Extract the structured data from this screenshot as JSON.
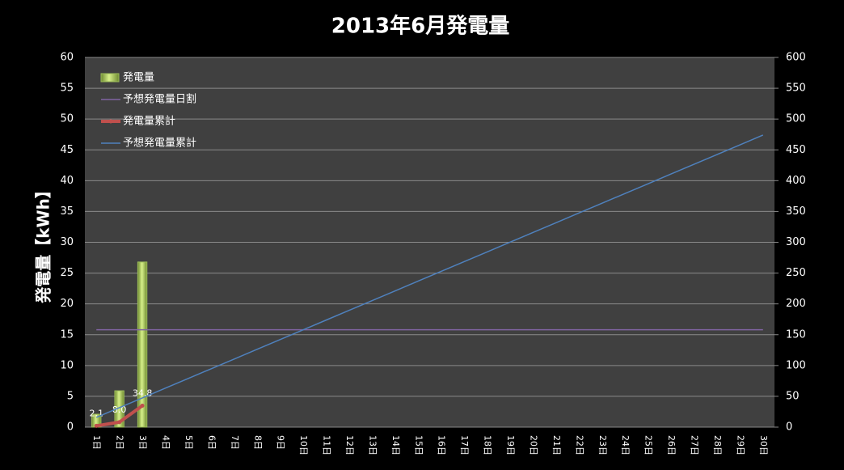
{
  "chart_data": {
    "type": "combo",
    "title": "2013年6月発電量",
    "y_label": "発電量【kWh】",
    "categories": [
      "1日",
      "2日",
      "3日",
      "4日",
      "5日",
      "6日",
      "7日",
      "8日",
      "9日",
      "10日",
      "11日",
      "12日",
      "13日",
      "14日",
      "15日",
      "16日",
      "17日",
      "18日",
      "19日",
      "20日",
      "21日",
      "22日",
      "23日",
      "24日",
      "25日",
      "26日",
      "27日",
      "28日",
      "29日",
      "30日"
    ],
    "ylim": [
      0,
      60
    ],
    "yticks": [
      0,
      5,
      10,
      15,
      20,
      25,
      30,
      35,
      40,
      45,
      50,
      55,
      60
    ],
    "y2lim": [
      0,
      600
    ],
    "y2ticks": [
      0,
      50,
      100,
      150,
      200,
      250,
      300,
      350,
      400,
      450,
      500,
      550,
      600
    ],
    "grid": true,
    "legend": "top-left",
    "series": [
      {
        "name": "発電量",
        "kind": "bar",
        "color": "#9bbb59",
        "values": [
          2.1,
          5.9,
          26.8,
          null,
          null,
          null,
          null,
          null,
          null,
          null,
          null,
          null,
          null,
          null,
          null,
          null,
          null,
          null,
          null,
          null,
          null,
          null,
          null,
          null,
          null,
          null,
          null,
          null,
          null,
          null
        ]
      },
      {
        "name": "予想発電量日割",
        "kind": "line",
        "color": "#8064a2",
        "values": [
          15.8,
          15.8,
          15.8,
          15.8,
          15.8,
          15.8,
          15.8,
          15.8,
          15.8,
          15.8,
          15.8,
          15.8,
          15.8,
          15.8,
          15.8,
          15.8,
          15.8,
          15.8,
          15.8,
          15.8,
          15.8,
          15.8,
          15.8,
          15.8,
          15.8,
          15.8,
          15.8,
          15.8,
          15.8,
          15.8
        ]
      },
      {
        "name": "発電量累計",
        "kind": "line",
        "axis": "y2",
        "markers": true,
        "color": "#c0504d",
        "values": [
          2.1,
          8.0,
          34.8,
          null,
          null,
          null,
          null,
          null,
          null,
          null,
          null,
          null,
          null,
          null,
          null,
          null,
          null,
          null,
          null,
          null,
          null,
          null,
          null,
          null,
          null,
          null,
          null,
          null,
          null,
          null
        ],
        "value_labels": [
          "2.1",
          "8.0",
          "34.8",
          null,
          null,
          null,
          null,
          null,
          null,
          null,
          null,
          null,
          null,
          null,
          null,
          null,
          null,
          null,
          null,
          null,
          null,
          null,
          null,
          null,
          null,
          null,
          null,
          null,
          null,
          null
        ]
      },
      {
        "name": "予想発電量累計",
        "kind": "line",
        "axis": "y2",
        "color": "#4f81bd",
        "values": [
          15.8,
          31.6,
          47.4,
          63.2,
          79.0,
          94.8,
          110.6,
          126.4,
          142.2,
          158.0,
          173.8,
          189.6,
          205.4,
          221.2,
          237.0,
          252.8,
          268.6,
          284.4,
          300.2,
          316.0,
          331.8,
          347.6,
          363.4,
          379.2,
          395.0,
          410.8,
          426.6,
          442.4,
          458.2,
          474.0
        ]
      }
    ]
  }
}
